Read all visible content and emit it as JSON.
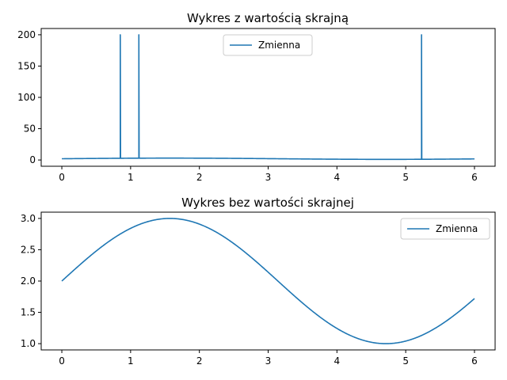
{
  "colors": {
    "series": "#1f77b4"
  },
  "chart_data": [
    {
      "type": "line",
      "title": "Wykres z wartością skrajną",
      "xlabel": "",
      "ylabel": "",
      "xlim": [
        -0.3,
        6.3
      ],
      "ylim": [
        -10,
        210
      ],
      "xticks": [
        0,
        1,
        2,
        3,
        4,
        5,
        6
      ],
      "yticks": [
        0,
        50,
        100,
        150,
        200
      ],
      "grid": false,
      "legend_position": "upper center",
      "function": "2 + sin(x)",
      "x_range": [
        0,
        6
      ],
      "outliers": [
        {
          "x": 0.85,
          "y": 200
        },
        {
          "x": 1.12,
          "y": 200
        },
        {
          "x": 5.23,
          "y": 200
        }
      ],
      "series": [
        {
          "name": "Zmienna"
        }
      ]
    },
    {
      "type": "line",
      "title": "Wykres bez wartości skrajnej",
      "xlabel": "",
      "ylabel": "",
      "xlim": [
        -0.3,
        6.3
      ],
      "ylim": [
        0.9,
        3.1
      ],
      "xticks": [
        0,
        1,
        2,
        3,
        4,
        5,
        6
      ],
      "yticks": [
        1.0,
        1.5,
        2.0,
        2.5,
        3.0
      ],
      "grid": false,
      "legend_position": "upper right",
      "function": "2 + sin(x)",
      "x_range": [
        0,
        6
      ],
      "outliers": [],
      "series": [
        {
          "name": "Zmienna"
        }
      ]
    }
  ]
}
